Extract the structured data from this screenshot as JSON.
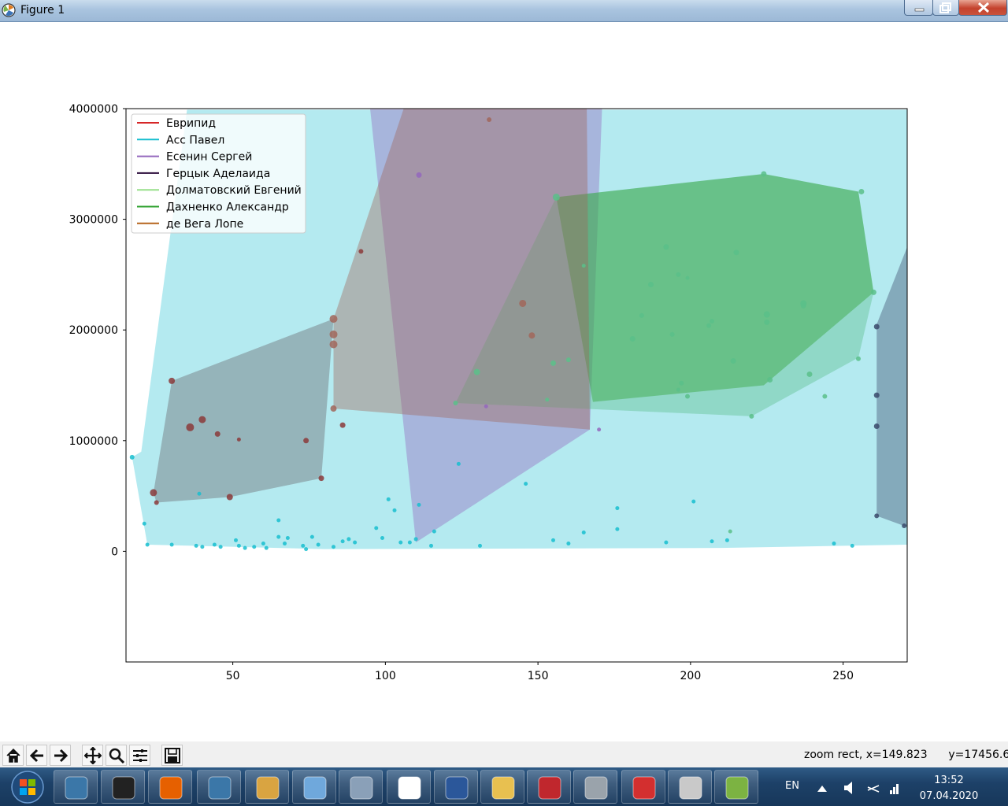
{
  "window": {
    "title": "Figure 1"
  },
  "toolbar": {
    "buttons": [
      {
        "name": "home-icon"
      },
      {
        "name": "back-icon"
      },
      {
        "name": "forward-icon"
      },
      {
        "name": "pan-icon"
      },
      {
        "name": "zoom-icon"
      },
      {
        "name": "configure-subplots-icon"
      },
      {
        "name": "save-icon"
      }
    ],
    "status": "zoom rect, x=149.823      y=17456.6"
  },
  "taskbar": {
    "apps": [
      "python",
      "microphone",
      "firefox",
      "python",
      "paint",
      "notepad",
      "calculator",
      "geogebra",
      "word",
      "file-explorer",
      "flash",
      "settings",
      "acrobat",
      "speaker",
      "notepad-plus"
    ],
    "language": "EN",
    "time": "13:52",
    "date": "07.04.2020"
  },
  "chart_data": {
    "type": "scatter",
    "xlim": [
      15,
      271
    ],
    "ylim": [
      -1000000,
      4000000
    ],
    "x_ticks": [
      50,
      100,
      150,
      200,
      250
    ],
    "y_ticks": [
      0,
      1000000,
      2000000,
      3000000,
      4000000
    ],
    "x_tick_labels": [
      "50",
      "100",
      "150",
      "200",
      "250"
    ],
    "y_tick_labels": [
      "0",
      "1000000",
      "2000000",
      "3000000",
      "4000000"
    ],
    "grid": false,
    "legend_position": "upper-left",
    "series": [
      {
        "name": "Еврипид",
        "color": "#d62728",
        "fill": "#8b3a3a",
        "hull": [
          [
            30,
            1540000
          ],
          [
            24,
            530000
          ],
          [
            25,
            440000
          ],
          [
            49,
            490000
          ],
          [
            79,
            660000
          ],
          [
            83,
            2100000
          ],
          [
            83,
            2100000
          ]
        ],
        "points": [
          [
            30,
            1540000,
            7
          ],
          [
            36,
            1120000,
            9
          ],
          [
            40,
            1190000,
            8
          ],
          [
            45,
            1060000,
            6
          ],
          [
            52,
            1010000,
            4
          ],
          [
            74,
            1000000,
            6
          ],
          [
            24,
            530000,
            8
          ],
          [
            25,
            440000,
            5
          ],
          [
            49,
            490000,
            7
          ],
          [
            79,
            660000,
            6
          ],
          [
            92,
            2710000,
            5
          ],
          [
            86,
            1140000,
            6
          ]
        ]
      },
      {
        "name": "Асс Павел",
        "color": "#17becf",
        "fill": "#17becf",
        "hull": [
          [
            17,
            850000
          ],
          [
            20,
            900000
          ],
          [
            35,
            3990000
          ],
          [
            271,
            3990000
          ],
          [
            271,
            60000
          ],
          [
            210,
            30000
          ],
          [
            80,
            20000
          ],
          [
            22,
            60000
          ]
        ],
        "points": [
          [
            17,
            850000,
            5
          ],
          [
            21,
            250000,
            4
          ],
          [
            22,
            60000,
            4
          ],
          [
            30,
            60000,
            4
          ],
          [
            38,
            50000,
            4
          ],
          [
            39,
            520000,
            4
          ],
          [
            40,
            40000,
            4
          ],
          [
            44,
            60000,
            4
          ],
          [
            46,
            40000,
            4
          ],
          [
            51,
            100000,
            4
          ],
          [
            52,
            50000,
            4
          ],
          [
            54,
            30000,
            4
          ],
          [
            57,
            40000,
            4
          ],
          [
            60,
            70000,
            4
          ],
          [
            61,
            30000,
            4
          ],
          [
            65,
            280000,
            4
          ],
          [
            65,
            130000,
            4
          ],
          [
            67,
            70000,
            4
          ],
          [
            68,
            120000,
            4
          ],
          [
            73,
            50000,
            4
          ],
          [
            74,
            20000,
            4
          ],
          [
            76,
            130000,
            4
          ],
          [
            78,
            60000,
            4
          ],
          [
            83,
            40000,
            4
          ],
          [
            86,
            90000,
            4
          ],
          [
            88,
            110000,
            4
          ],
          [
            90,
            80000,
            4
          ],
          [
            97,
            210000,
            4
          ],
          [
            99,
            120000,
            4
          ],
          [
            101,
            470000,
            4
          ],
          [
            103,
            370000,
            4
          ],
          [
            105,
            80000,
            4
          ],
          [
            108,
            80000,
            4
          ],
          [
            110,
            110000,
            4
          ],
          [
            111,
            420000,
            4
          ],
          [
            115,
            50000,
            4
          ],
          [
            116,
            180000,
            4
          ],
          [
            124,
            790000,
            4
          ],
          [
            131,
            50000,
            4
          ],
          [
            146,
            610000,
            4
          ],
          [
            155,
            100000,
            4
          ],
          [
            160,
            70000,
            4
          ],
          [
            165,
            170000,
            4
          ],
          [
            176,
            390000,
            4
          ],
          [
            176,
            200000,
            4
          ],
          [
            192,
            80000,
            4
          ],
          [
            201,
            450000,
            4
          ],
          [
            207,
            90000,
            4
          ],
          [
            212,
            100000,
            4
          ],
          [
            247,
            70000,
            4
          ],
          [
            253,
            50000,
            4
          ]
        ]
      },
      {
        "name": "Есенин Сергей",
        "color": "#9467bd",
        "fill": "#9467bd",
        "hull": [
          [
            110,
            80000
          ],
          [
            95,
            4000000
          ],
          [
            171,
            4000000
          ],
          [
            167,
            1100000
          ]
        ],
        "points": [
          [
            111,
            3400000,
            6
          ],
          [
            133,
            1310000,
            4
          ],
          [
            170,
            1100000,
            4
          ]
        ]
      },
      {
        "name": "Герцык Аделаида",
        "color": "#2a0a3a",
        "fill": "#3b4a6b",
        "hull": [
          [
            261,
            2050000
          ],
          [
            271,
            2750000
          ],
          [
            271,
            220000
          ],
          [
            261,
            320000
          ]
        ],
        "points": [
          [
            261,
            2030000,
            6
          ],
          [
            261,
            1410000,
            6
          ],
          [
            261,
            1130000,
            6
          ],
          [
            261,
            320000,
            5
          ],
          [
            270,
            230000,
            5
          ]
        ]
      },
      {
        "name": "Долматовский Евгений",
        "color": "#98df8a",
        "fill": "#5bbf8a",
        "hull": [
          [
            123,
            1340000
          ],
          [
            156,
            3200000
          ],
          [
            224,
            3410000
          ],
          [
            255,
            3250000
          ],
          [
            260,
            2340000
          ],
          [
            255,
            1750000
          ],
          [
            220,
            1220000
          ]
        ],
        "points": [
          [
            156,
            3200000,
            8
          ],
          [
            165,
            2580000,
            4
          ],
          [
            184,
            2130000,
            5
          ],
          [
            187,
            2410000,
            6
          ],
          [
            192,
            2750000,
            6
          ],
          [
            196,
            2500000,
            5
          ],
          [
            199,
            2470000,
            4
          ],
          [
            206,
            2040000,
            5
          ],
          [
            207,
            2080000,
            5
          ],
          [
            215,
            2700000,
            6
          ],
          [
            225,
            2070000,
            6
          ],
          [
            225,
            2140000,
            7
          ],
          [
            237,
            2240000,
            7
          ],
          [
            237,
            2220000,
            6
          ],
          [
            214,
            1720000,
            6
          ],
          [
            226,
            1550000,
            6
          ],
          [
            239,
            1600000,
            6
          ],
          [
            244,
            1400000,
            5
          ],
          [
            255,
            1740000,
            5
          ],
          [
            260,
            2340000,
            6
          ],
          [
            256,
            3250000,
            6
          ],
          [
            224,
            3410000,
            6
          ],
          [
            220,
            1220000,
            5
          ],
          [
            197,
            1520000,
            5
          ],
          [
            199,
            1400000,
            5
          ],
          [
            196,
            1460000,
            4
          ],
          [
            181,
            1920000,
            6
          ],
          [
            194,
            1960000,
            5
          ],
          [
            160,
            1730000,
            5
          ],
          [
            155,
            1700000,
            6
          ],
          [
            153,
            1370000,
            4
          ],
          [
            130,
            1620000,
            7
          ],
          [
            123,
            1340000,
            5
          ],
          [
            213,
            180000,
            4
          ]
        ]
      },
      {
        "name": "Дахненко Александр",
        "color": "#2ca02c",
        "fill": "#2ca02c",
        "hull": [
          [
            156,
            3200000
          ],
          [
            224,
            3410000
          ],
          [
            255,
            3250000
          ],
          [
            260,
            2340000
          ],
          [
            224,
            1500000
          ],
          [
            168,
            1350000
          ]
        ],
        "points": []
      },
      {
        "name": "де Вега Лопе",
        "color": "#b5651d",
        "fill": "#a1665a",
        "hull": [
          [
            83,
            1290000
          ],
          [
            83,
            2100000
          ],
          [
            106,
            4000000
          ],
          [
            166,
            4000000
          ],
          [
            167,
            1100000
          ]
        ],
        "points": [
          [
            83,
            2100000,
            9
          ],
          [
            83,
            1960000,
            9
          ],
          [
            83,
            1870000,
            9
          ],
          [
            83,
            1290000,
            7
          ],
          [
            134,
            3900000,
            5
          ],
          [
            145,
            2240000,
            8
          ],
          [
            148,
            1950000,
            7
          ]
        ]
      }
    ]
  }
}
